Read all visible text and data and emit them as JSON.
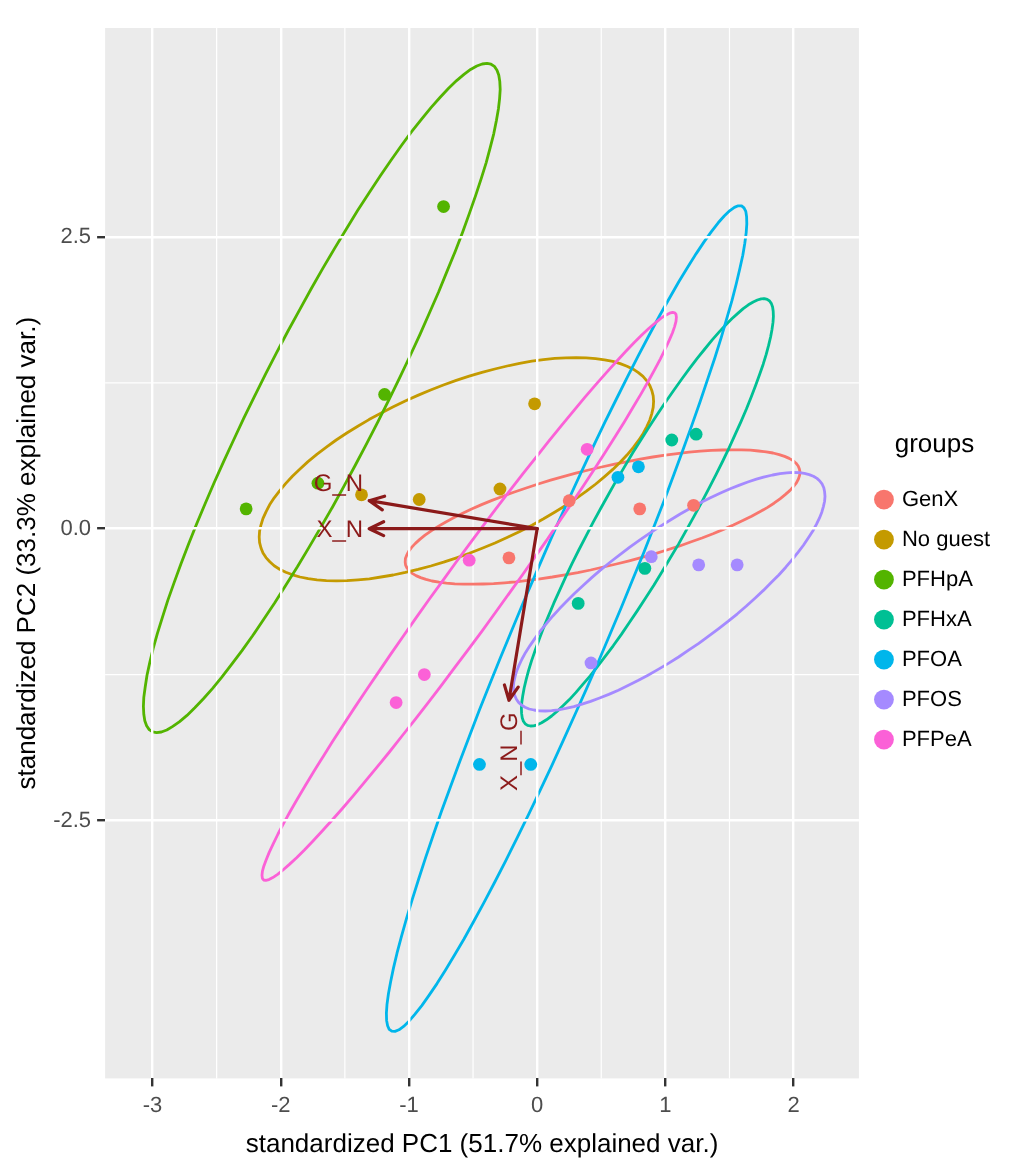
{
  "chart_data": {
    "type": "scatter",
    "xlabel": "standardized PC1 (51.7% explained var.)",
    "ylabel": "standardized PC2 (33.3% explained var.)",
    "legend_title": "groups",
    "legend": "right",
    "grid": true,
    "marker": "circle",
    "xlim": [
      -3.37,
      2.51
    ],
    "xticks": [
      -3,
      -2,
      -1,
      0,
      1,
      2
    ],
    "ylim": [
      -4.71,
      4.29
    ],
    "yticks": [
      -2.5,
      {
        "value": 0,
        "label": "0.0"
      },
      2.5
    ],
    "series": [
      {
        "name": "GenX",
        "color": "#f8766d",
        "x": [
          -0.22,
          0.25,
          0.8,
          1.22
        ],
        "values": [
          -0.25,
          0.24,
          0.17,
          0.2
        ]
      },
      {
        "name": "No guest",
        "color": "#c49a00",
        "x": [
          -1.37,
          -0.92,
          -0.29,
          -0.02
        ],
        "values": [
          0.29,
          0.25,
          0.34,
          1.07
        ]
      },
      {
        "name": "PFHpA",
        "color": "#53b400",
        "x": [
          -0.73,
          -1.19,
          -2.27,
          -1.71
        ],
        "values": [
          2.76,
          1.15,
          0.17,
          0.39
        ]
      },
      {
        "name": "PFHxA",
        "color": "#00c094",
        "x": [
          1.05,
          1.24,
          0.84,
          0.32
        ],
        "values": [
          0.76,
          0.81,
          -0.34,
          -0.64
        ]
      },
      {
        "name": "PFOA",
        "color": "#00b6eb",
        "x": [
          0.63,
          0.79,
          -0.45,
          -0.05
        ],
        "values": [
          0.44,
          0.53,
          -2.02,
          -2.02
        ]
      },
      {
        "name": "PFOS",
        "color": "#a58aff",
        "x": [
          0.89,
          1.26,
          1.56,
          0.42
        ],
        "values": [
          -0.24,
          -0.31,
          -0.31,
          -1.15
        ]
      },
      {
        "name": "PFPeA",
        "color": "#fb61d7",
        "x": [
          0.39,
          -0.53,
          -0.88,
          -1.1
        ],
        "values": [
          0.68,
          -0.27,
          -1.25,
          -1.49
        ]
      }
    ],
    "annotations": [
      "G_N",
      "X_N",
      "X_N_G"
    ]
  }
}
